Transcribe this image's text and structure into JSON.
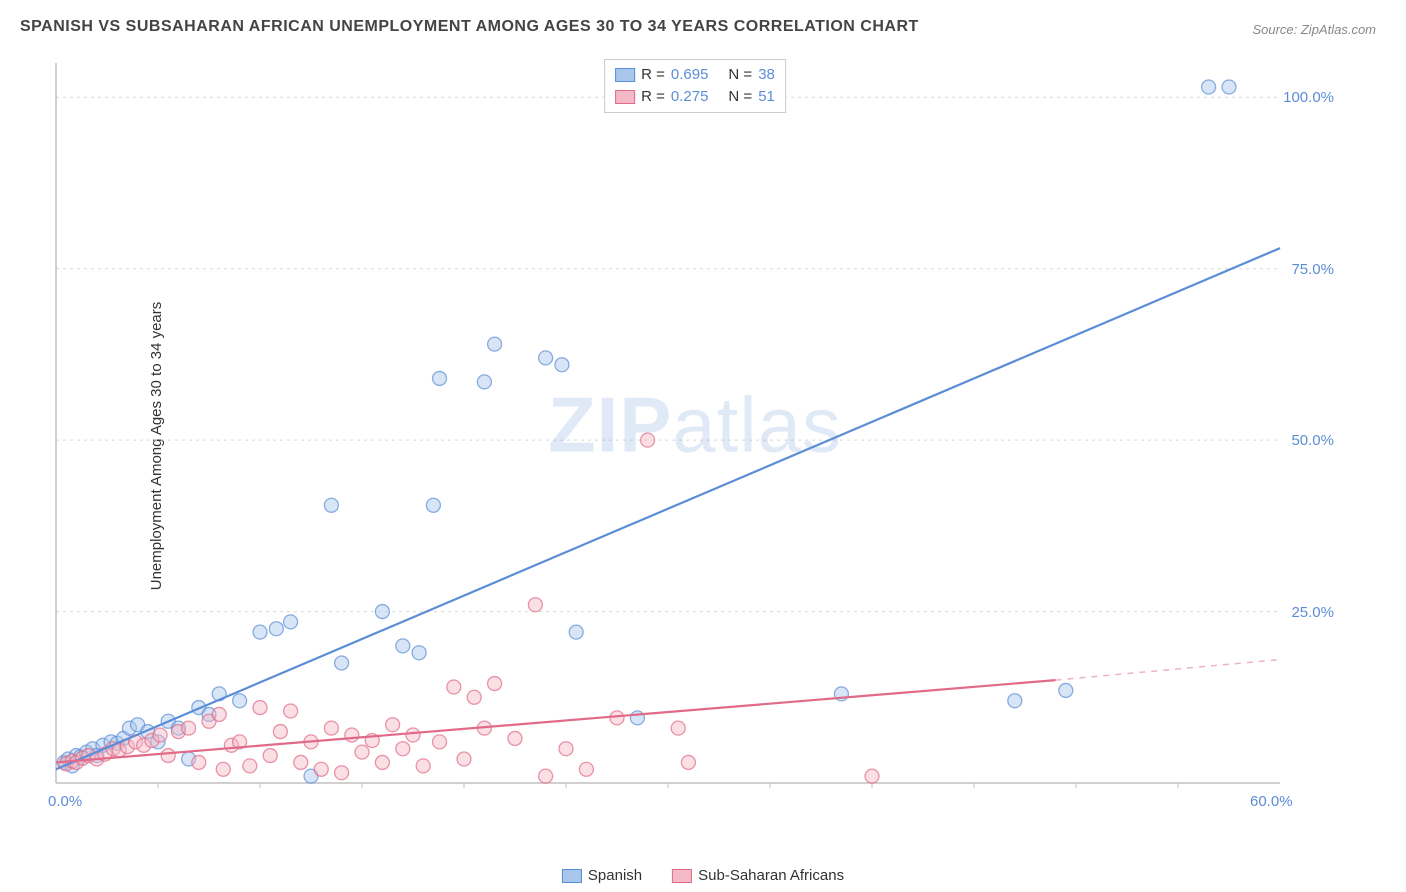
{
  "title": "SPANISH VS SUBSAHARAN AFRICAN UNEMPLOYMENT AMONG AGES 30 TO 34 YEARS CORRELATION CHART",
  "source": "Source: ZipAtlas.com",
  "ylabel": "Unemployment Among Ages 30 to 34 years",
  "watermark_a": "ZIP",
  "watermark_b": "atlas",
  "chart": {
    "type": "scatter",
    "xlim": [
      0,
      60
    ],
    "ylim": [
      0,
      105
    ],
    "xticks": [
      {
        "v": 0,
        "l": "0.0%"
      },
      {
        "v": 60,
        "l": "60.0%"
      }
    ],
    "yticks": [
      {
        "v": 25,
        "l": "25.0%"
      },
      {
        "v": 50,
        "l": "50.0%"
      },
      {
        "v": 75,
        "l": "75.0%"
      },
      {
        "v": 100,
        "l": "100.0%"
      }
    ],
    "grid_color": "#d8d8d8",
    "axis_color": "#c0c0c0",
    "axis_label_color": "#5b8dd6",
    "background": "#ffffff",
    "marker_radius": 7,
    "marker_opacity": 0.45,
    "line_width": 2.2,
    "series": [
      {
        "name": "Spanish",
        "color_fill": "#a9c6ec",
        "color_stroke": "#5b8dd6",
        "trend": {
          "x1": 0,
          "y1": 2,
          "x2": 60,
          "y2": 78,
          "dash_from_x": 60
        },
        "R": "0.695",
        "N": "38",
        "points": [
          [
            0.4,
            3.0
          ],
          [
            0.6,
            3.5
          ],
          [
            0.8,
            2.5
          ],
          [
            1.0,
            4.0
          ],
          [
            1.2,
            3.8
          ],
          [
            1.5,
            4.5
          ],
          [
            1.8,
            5.0
          ],
          [
            2.0,
            4.0
          ],
          [
            2.3,
            5.5
          ],
          [
            2.7,
            6.0
          ],
          [
            3.0,
            5.8
          ],
          [
            3.3,
            6.5
          ],
          [
            3.6,
            8.0
          ],
          [
            4.0,
            8.5
          ],
          [
            4.5,
            7.5
          ],
          [
            5.0,
            6.0
          ],
          [
            5.5,
            9.0
          ],
          [
            6.0,
            8.0
          ],
          [
            6.5,
            3.5
          ],
          [
            7.0,
            11.0
          ],
          [
            7.5,
            10.0
          ],
          [
            8.0,
            13.0
          ],
          [
            9.0,
            12.0
          ],
          [
            10.0,
            22.0
          ],
          [
            10.8,
            22.5
          ],
          [
            11.5,
            23.5
          ],
          [
            12.5,
            1.0
          ],
          [
            13.5,
            40.5
          ],
          [
            14.0,
            17.5
          ],
          [
            16.0,
            25.0
          ],
          [
            17.0,
            20.0
          ],
          [
            17.8,
            19.0
          ],
          [
            18.5,
            40.5
          ],
          [
            18.8,
            59.0
          ],
          [
            21.0,
            58.5
          ],
          [
            21.5,
            64.0
          ],
          [
            24.0,
            62.0
          ],
          [
            24.8,
            61.0
          ],
          [
            25.5,
            22.0
          ],
          [
            28.5,
            9.5
          ],
          [
            38.5,
            13.0
          ],
          [
            47.0,
            12.0
          ],
          [
            49.5,
            13.5
          ],
          [
            56.5,
            101.5
          ],
          [
            57.5,
            101.5
          ]
        ]
      },
      {
        "name": "Sub-Saharan Africans",
        "color_fill": "#f3b9c6",
        "color_stroke": "#e06a87",
        "trend": {
          "x1": 0,
          "y1": 3,
          "x2": 49,
          "y2": 15,
          "dash_from_x": 49,
          "dash_to_x": 60,
          "dash_to_y": 18
        },
        "R": "0.275",
        "N": "51",
        "points": [
          [
            0.5,
            2.8
          ],
          [
            0.8,
            3.2
          ],
          [
            1.0,
            3.0
          ],
          [
            1.3,
            3.6
          ],
          [
            1.6,
            4.0
          ],
          [
            2.0,
            3.5
          ],
          [
            2.4,
            4.2
          ],
          [
            2.8,
            5.0
          ],
          [
            3.1,
            4.8
          ],
          [
            3.5,
            5.3
          ],
          [
            3.9,
            6.0
          ],
          [
            4.3,
            5.5
          ],
          [
            4.7,
            6.2
          ],
          [
            5.1,
            7.0
          ],
          [
            5.5,
            4.0
          ],
          [
            6.0,
            7.5
          ],
          [
            6.5,
            8.0
          ],
          [
            7.0,
            3.0
          ],
          [
            7.5,
            9.0
          ],
          [
            8.0,
            10.0
          ],
          [
            8.2,
            2.0
          ],
          [
            8.6,
            5.5
          ],
          [
            9.0,
            6.0
          ],
          [
            9.5,
            2.5
          ],
          [
            10.0,
            11.0
          ],
          [
            10.5,
            4.0
          ],
          [
            11.0,
            7.5
          ],
          [
            11.5,
            10.5
          ],
          [
            12.0,
            3.0
          ],
          [
            12.5,
            6.0
          ],
          [
            13.0,
            2.0
          ],
          [
            13.5,
            8.0
          ],
          [
            14.0,
            1.5
          ],
          [
            14.5,
            7.0
          ],
          [
            15.0,
            4.5
          ],
          [
            15.5,
            6.2
          ],
          [
            16.0,
            3.0
          ],
          [
            16.5,
            8.5
          ],
          [
            17.0,
            5.0
          ],
          [
            17.5,
            7.0
          ],
          [
            18.0,
            2.5
          ],
          [
            18.8,
            6.0
          ],
          [
            19.5,
            14.0
          ],
          [
            20.0,
            3.5
          ],
          [
            20.5,
            12.5
          ],
          [
            21.0,
            8.0
          ],
          [
            21.5,
            14.5
          ],
          [
            22.5,
            6.5
          ],
          [
            23.5,
            26.0
          ],
          [
            24.0,
            1.0
          ],
          [
            25.0,
            5.0
          ],
          [
            26.0,
            2.0
          ],
          [
            27.5,
            9.5
          ],
          [
            29.0,
            50.0
          ],
          [
            30.5,
            8.0
          ],
          [
            31.0,
            3.0
          ],
          [
            40.0,
            1.0
          ]
        ]
      }
    ]
  },
  "legend_bottom": [
    {
      "label": "Spanish",
      "fill": "#a9c6ec",
      "stroke": "#5b8dd6"
    },
    {
      "label": "Sub-Saharan Africans",
      "fill": "#f3b9c6",
      "stroke": "#e06a87"
    }
  ]
}
